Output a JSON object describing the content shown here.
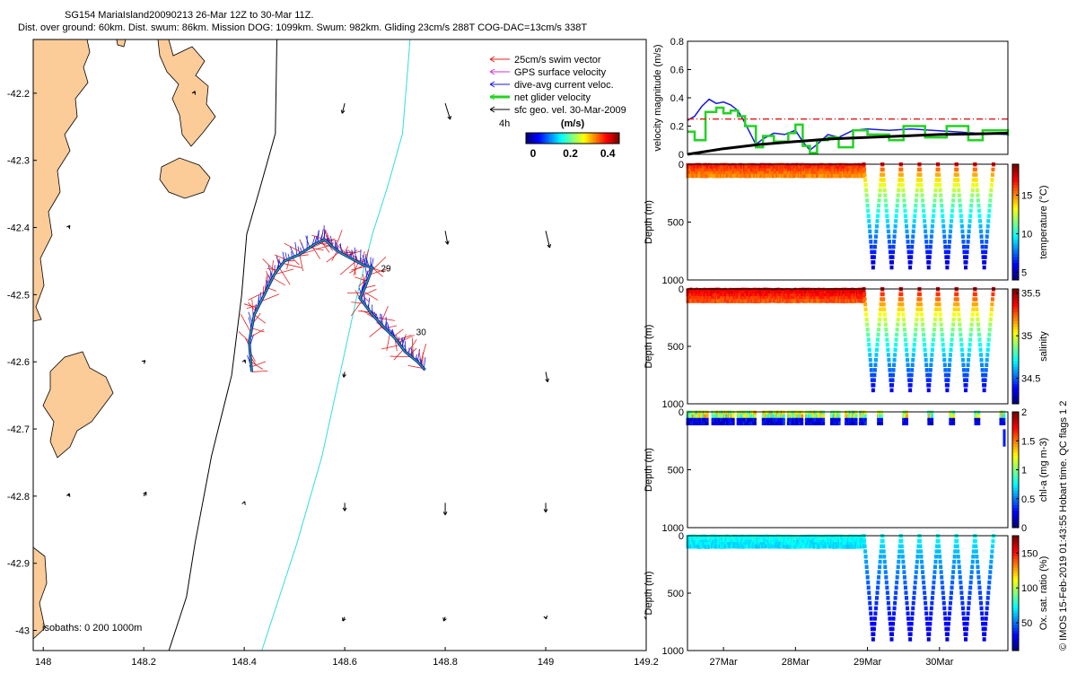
{
  "header": {
    "line1": "SG154 MariaIsland20090213 26-Mar 12Z to 30-Mar 11Z.",
    "line2": "Dist. over ground: 60km. Dist. swum: 86km. Mission DOG: 1099km. Swum: 982km. Gliding 23cm/s 288T COG-DAC=13cm/s 338T"
  },
  "colors": {
    "land": "#fbcb98",
    "track": "#1818e0",
    "swim": "#e02020",
    "net": "#22d322",
    "bathy_200": "#000000",
    "bathy_1000": "#33dddd"
  },
  "chart_data": [
    {
      "id": "map",
      "type": "scatter",
      "xlim": [
        147.98,
        149.2
      ],
      "ylim": [
        -43.03,
        -42.12
      ],
      "x_ticks": [
        148,
        148.2,
        148.4,
        148.6,
        148.8,
        149,
        149.2
      ],
      "y_ticks": [
        -42.2,
        -42.3,
        -42.4,
        -42.5,
        -42.6,
        -42.7,
        -42.8,
        -42.9,
        -43
      ],
      "x_tick_labels": [
        "148",
        "148.2",
        "148.4",
        "148.6",
        "148.8",
        "149",
        "149.2"
      ],
      "y_tick_labels": [
        "-42.2",
        "-42.3",
        "-42.4",
        "-42.5",
        "-42.6",
        "-42.7",
        "-42.8",
        "-42.9",
        "-43"
      ],
      "track": [
        [
          148.415,
          -42.615
        ],
        [
          148.41,
          -42.57
        ],
        [
          148.42,
          -42.53
        ],
        [
          148.44,
          -42.5
        ],
        [
          148.46,
          -42.47
        ],
        [
          148.48,
          -42.45
        ],
        [
          148.51,
          -42.44
        ],
        [
          148.54,
          -42.425
        ],
        [
          148.56,
          -42.418
        ],
        [
          148.585,
          -42.435
        ],
        [
          148.61,
          -42.445
        ],
        [
          148.635,
          -42.455
        ],
        [
          148.655,
          -42.46
        ],
        [
          148.64,
          -42.49
        ],
        [
          148.63,
          -42.505
        ],
        [
          148.655,
          -42.53
        ],
        [
          148.68,
          -42.55
        ],
        [
          148.7,
          -42.565
        ],
        [
          148.72,
          -42.585
        ],
        [
          148.745,
          -42.6
        ],
        [
          148.76,
          -42.612
        ]
      ],
      "track_labels": [
        {
          "text": "29",
          "x": 148.665,
          "y": -42.46
        },
        {
          "text": "30",
          "x": 148.735,
          "y": -42.555
        }
      ],
      "bathy_200": [
        [
          148.465,
          -42.12
        ],
        [
          148.462,
          -42.26
        ],
        [
          148.432,
          -42.34
        ],
        [
          148.405,
          -42.41
        ],
        [
          148.395,
          -42.5
        ],
        [
          148.375,
          -42.62
        ],
        [
          148.335,
          -42.74
        ],
        [
          148.302,
          -42.87
        ],
        [
          148.285,
          -42.95
        ],
        [
          148.25,
          -43.03
        ]
      ],
      "bathy_1000": [
        [
          148.73,
          -42.12
        ],
        [
          148.715,
          -42.26
        ],
        [
          148.685,
          -42.34
        ],
        [
          148.655,
          -42.41
        ],
        [
          148.625,
          -42.5
        ],
        [
          148.59,
          -42.62
        ],
        [
          148.555,
          -42.74
        ],
        [
          148.505,
          -42.87
        ],
        [
          148.47,
          -42.95
        ],
        [
          148.435,
          -43.03
        ]
      ],
      "sfc_vectors": [
        [
          148.6,
          -42.215,
          -0.005,
          -0.015
        ],
        [
          148.8,
          -42.215,
          0.01,
          -0.024
        ],
        [
          148.8,
          -42.405,
          0.005,
          -0.02
        ],
        [
          149.0,
          -42.405,
          0.008,
          -0.025
        ],
        [
          148.6,
          -42.615,
          -0.002,
          -0.008
        ],
        [
          149.0,
          -42.615,
          0.004,
          -0.015
        ],
        [
          148.6,
          -42.81,
          0.0,
          -0.012
        ],
        [
          148.8,
          -42.81,
          0.0,
          -0.018
        ],
        [
          149.0,
          -42.81,
          0.0,
          -0.014
        ],
        [
          148.2,
          -42.8,
          0.005,
          0.006
        ],
        [
          148.05,
          -42.4,
          0.003,
          0.003
        ],
        [
          148.4,
          -42.6,
          0.002,
          0.003
        ],
        [
          148.2,
          -42.6,
          0.003,
          0.002
        ],
        [
          148.3,
          -42.2,
          0.002,
          0.003
        ],
        [
          148.6,
          -42.98,
          -0.004,
          -0.006
        ],
        [
          148.8,
          -42.98,
          -0.003,
          -0.006
        ],
        [
          149.0,
          -42.98,
          0.001,
          -0.003
        ],
        [
          149.2,
          -42.98,
          0.0,
          -0.004
        ],
        [
          148.05,
          -42.8,
          0.002,
          0.004
        ],
        [
          148.4,
          -42.81,
          0.001,
          0.002
        ]
      ],
      "isobaths_label": "isobaths: 0   200  1000m",
      "legend": [
        {
          "text": "25cm/s swim vector",
          "color": "#e02020"
        },
        {
          "text": "GPS surface velocity",
          "color": "#d030d0"
        },
        {
          "text": "dive-avg current veloc.",
          "color": "#1818e0"
        },
        {
          "text": "net glider velocity",
          "color": "#22d322"
        },
        {
          "text": "sfc geo. vel. 30-Mar-2009",
          "color": "#000000"
        }
      ],
      "colorbar": {
        "label": "(m/s)",
        "ticks": [
          "0",
          "0.2",
          "0.4"
        ],
        "range": [
          0,
          0.5
        ],
        "note": "4h"
      }
    },
    {
      "id": "velocity",
      "type": "line",
      "ylabel": "velocity magnitude (m/s)",
      "xlim": [
        26.5,
        30.95
      ],
      "ylim": [
        0,
        0.8
      ],
      "y_ticks": [
        0,
        0.2,
        0.4,
        0.6,
        0.8
      ],
      "y_tick_labels": [
        "0",
        "0.2",
        "0.4",
        "0.6",
        "0.8"
      ],
      "series": [
        {
          "key": "dac",
          "color": "#1818e0",
          "x": [
            26.5,
            26.6,
            26.7,
            26.8,
            26.9,
            27.0,
            27.1,
            27.2,
            27.3,
            27.45,
            27.55,
            27.7,
            27.85,
            28.0,
            28.1,
            28.2,
            28.3,
            28.45,
            28.6,
            28.8,
            29.0,
            29.3,
            29.6,
            29.9,
            30.2,
            30.5,
            30.95
          ],
          "y": [
            0.24,
            0.27,
            0.34,
            0.39,
            0.36,
            0.37,
            0.35,
            0.31,
            0.22,
            0.07,
            0.11,
            0.15,
            0.14,
            0.17,
            0.09,
            0.03,
            0.07,
            0.14,
            0.12,
            0.17,
            0.18,
            0.17,
            0.18,
            0.17,
            0.16,
            0.15,
            0.14
          ]
        },
        {
          "key": "net",
          "color": "#22d322",
          "x": [
            26.5,
            26.6,
            26.75,
            26.9,
            27.0,
            27.1,
            27.2,
            27.3,
            27.45,
            27.55,
            27.7,
            27.9,
            28.0,
            28.1,
            28.2,
            28.3,
            28.45,
            28.6,
            28.8,
            29.0,
            29.3,
            29.5,
            29.8,
            30.1,
            30.4,
            30.6,
            30.95
          ],
          "y": [
            0.16,
            0.1,
            0.3,
            0.33,
            0.29,
            0.31,
            0.27,
            0.2,
            0.05,
            0.13,
            0.09,
            0.15,
            0.21,
            0.06,
            0.01,
            0.1,
            0.12,
            0.05,
            0.17,
            0.14,
            0.1,
            0.2,
            0.12,
            0.2,
            0.1,
            0.17,
            0.13
          ]
        },
        {
          "key": "geo",
          "color": "#000000",
          "x": [
            26.5,
            27.0,
            27.5,
            28.0,
            28.5,
            29.0,
            29.5,
            30.0,
            30.5,
            30.95
          ],
          "y": [
            0.0,
            0.04,
            0.07,
            0.09,
            0.11,
            0.12,
            0.13,
            0.14,
            0.145,
            0.15
          ]
        },
        {
          "key": "swim",
          "color": "#e02020",
          "x": [
            26.5,
            30.95
          ],
          "y": [
            0.25,
            0.25
          ]
        }
      ]
    },
    {
      "id": "temperature",
      "type": "scatter",
      "ylabel": "Depth (m)",
      "clabel": "temperature (°C)",
      "ylim": [
        0,
        1000
      ],
      "y_ticks": [
        0,
        500,
        1000
      ],
      "y_tick_labels": [
        "0",
        "500",
        "1000"
      ],
      "c_range": [
        4,
        19
      ],
      "c_ticks": [
        5,
        10,
        15
      ],
      "c_tick_labels": [
        "5",
        "10",
        "15"
      ],
      "surface_value": 17,
      "deep_value": 5,
      "shallow_phase": {
        "x0": 26.5,
        "x1": 28.95,
        "top": 5,
        "bottom": 95
      },
      "deep_phase": {
        "x0": 28.95,
        "x1": 30.75,
        "cycles": 7,
        "max_depth": 890
      }
    },
    {
      "id": "salinity",
      "type": "scatter",
      "ylabel": "Depth (m)",
      "clabel": "salinity",
      "ylim": [
        0,
        1000
      ],
      "y_ticks": [
        0,
        500,
        1000
      ],
      "y_tick_labels": [
        "0",
        "500",
        "1000"
      ],
      "c_range": [
        34.2,
        35.55
      ],
      "c_ticks": [
        34.5,
        35,
        35.5
      ],
      "c_tick_labels": [
        "34.5",
        "35",
        "35.5"
      ],
      "surface_value": 35.45,
      "deep_value": 34.35,
      "shallow_phase": {
        "x0": 26.5,
        "x1": 28.95,
        "top": 5,
        "bottom": 100
      },
      "deep_phase": {
        "x0": 28.95,
        "x1": 30.75,
        "cycles": 7,
        "max_depth": 880
      }
    },
    {
      "id": "chla",
      "type": "scatter",
      "ylabel": "Depth (m)",
      "clabel": "chl-a (mg m-3)",
      "ylim": [
        0,
        1000
      ],
      "y_ticks": [
        0,
        500,
        1000
      ],
      "y_tick_labels": [
        "0",
        "500",
        "1000"
      ],
      "c_range": [
        0,
        2
      ],
      "c_ticks": [
        0,
        0.5,
        1,
        1.5,
        2
      ],
      "c_tick_labels": [
        "0",
        "0.5",
        "1",
        "1.5",
        "2"
      ],
      "segments": [
        [
          26.5,
          26.78
        ],
        [
          26.85,
          27.15
        ],
        [
          27.2,
          27.45
        ],
        [
          27.55,
          27.85
        ],
        [
          27.9,
          28.1
        ],
        [
          28.15,
          28.4
        ],
        [
          28.5,
          28.62
        ],
        [
          28.7,
          28.85
        ],
        [
          28.9,
          28.98
        ],
        [
          29.15,
          29.2
        ],
        [
          29.5,
          29.55
        ],
        [
          29.85,
          29.9
        ],
        [
          30.15,
          30.2
        ],
        [
          30.5,
          30.55
        ],
        [
          30.85,
          30.9
        ]
      ],
      "top": 5,
      "bottom": 100
    },
    {
      "id": "oxygen",
      "type": "scatter",
      "ylabel": "Depth (m)",
      "clabel": "Ox. sat. ratio (%)",
      "ylim": [
        0,
        1000
      ],
      "y_ticks": [
        0,
        500,
        1000
      ],
      "y_tick_labels": [
        "0",
        "500",
        "1000"
      ],
      "c_range": [
        10,
        175
      ],
      "c_ticks": [
        50,
        100,
        150
      ],
      "c_tick_labels": [
        "50",
        "100",
        "150"
      ],
      "surface_value": 75,
      "deep_value": 25,
      "shallow_phase": {
        "x0": 26.5,
        "x1": 28.95,
        "top": 5,
        "bottom": 90
      },
      "deep_phase": {
        "x0": 28.95,
        "x1": 30.75,
        "cycles": 7,
        "max_depth": 900
      },
      "x_ticks": [
        27,
        28,
        29,
        30
      ],
      "x_tick_labels": [
        "27Mar",
        "28Mar",
        "29Mar",
        "30Mar"
      ]
    }
  ],
  "side_note": "© IMOS 15-Feb-2019 01:43:55 Hobart time. QC flags 1  2"
}
